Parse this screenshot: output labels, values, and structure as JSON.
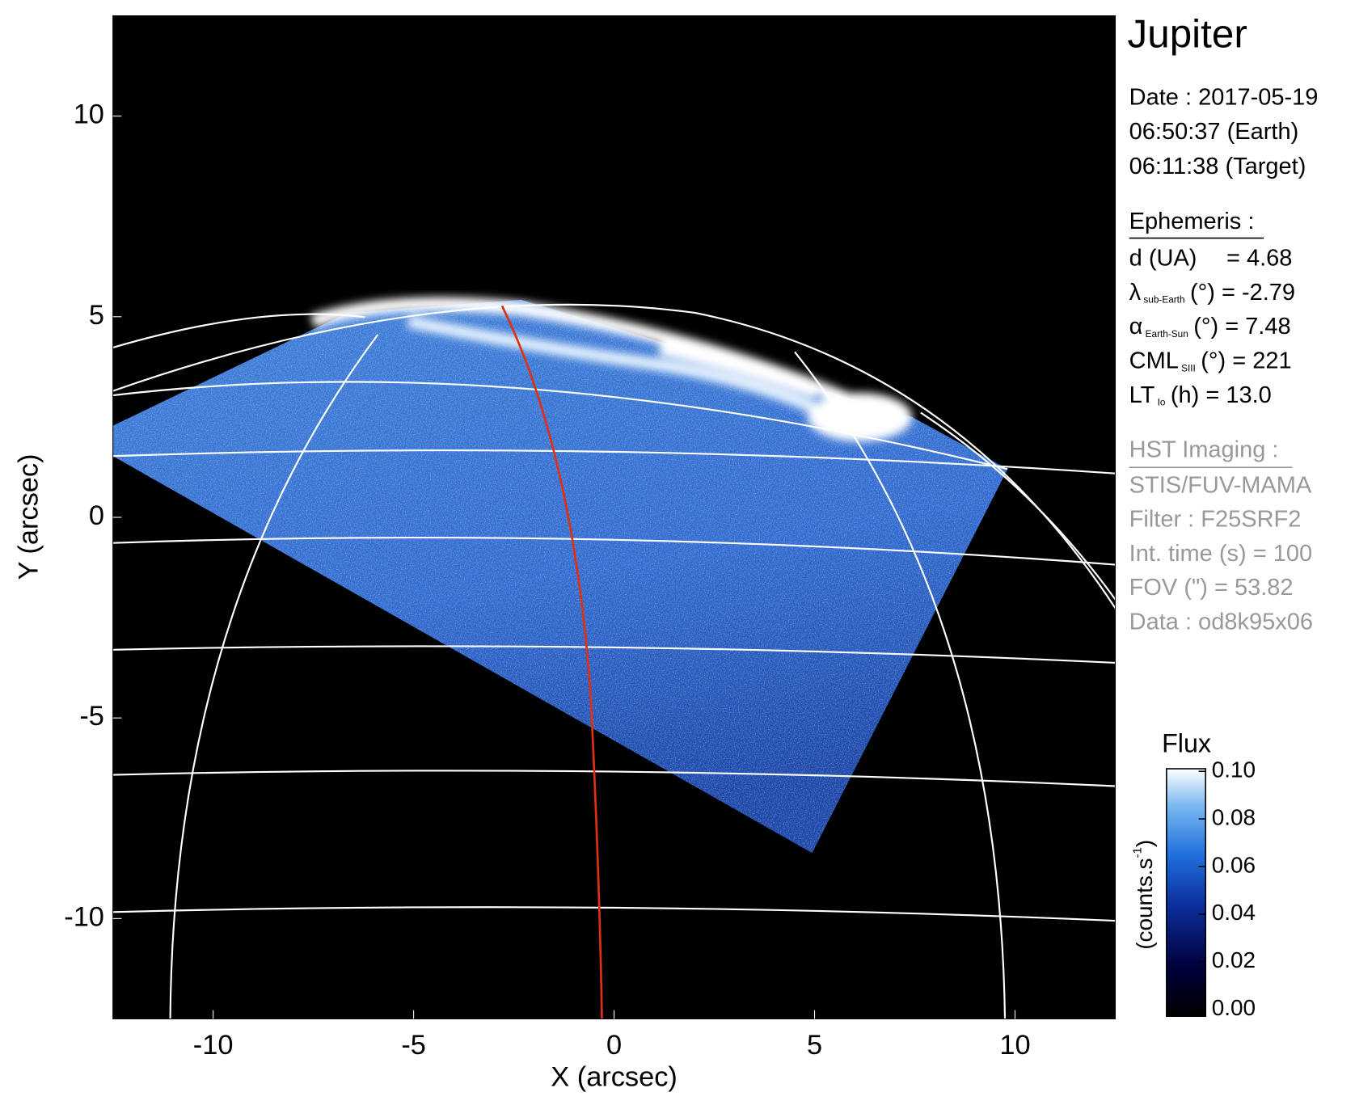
{
  "chart_data": {
    "type": "image",
    "xlabel": "X (arcsec)",
    "ylabel": "Y (arcsec)",
    "xlim": [
      -12.5,
      12.5
    ],
    "ylim": [
      -12.5,
      12.5
    ],
    "xticks": [
      -10,
      -5,
      0,
      5,
      10
    ],
    "yticks": [
      -10,
      -5,
      0,
      5,
      10
    ],
    "colorbar": {
      "title": "Flux",
      "label": {
        "text": "(counts.s",
        "sup": "-1",
        "end": ")"
      },
      "lim": [
        0,
        0.1
      ],
      "ticks": [
        {
          "value": 0,
          "label": "0.00"
        },
        {
          "value": 0.02,
          "label": "0.02"
        },
        {
          "value": 0.04,
          "label": "0.04"
        },
        {
          "value": 0.06,
          "label": "0.06"
        },
        {
          "value": 0.08,
          "label": "0.08"
        },
        {
          "value": 0.1,
          "label": "0.10"
        }
      ]
    }
  },
  "info": {
    "title": "Jupiter",
    "date": [
      "Date : 2017-05-19",
      "06:50:37 (Earth)",
      "06:11:38 (Target)"
    ],
    "ephemeris": {
      "heading": "Ephemeris :",
      "rows": [
        {
          "symbol": "d (UA)",
          "rest": "= 4.68"
        },
        {
          "symbol": "λ",
          "sub": "sub-Earth",
          "rest": "(°) = -2.79"
        },
        {
          "symbol": "α",
          "sub": "Earth-Sun",
          "rest": "(°) = 7.48"
        },
        {
          "symbol": "CML",
          "sub": "SIII",
          "rest": "(°) = 221"
        },
        {
          "symbol": "LT",
          "sub": "Io",
          "rest": "(h) = 13.0"
        }
      ]
    },
    "hst": {
      "heading": "HST Imaging :",
      "lines": [
        "STIS/FUV-MAMA",
        "Filter : F25SRF2",
        "Int. time (s) = 100",
        "FOV (\") = 53.82",
        "Data : od8k95x06"
      ]
    }
  }
}
